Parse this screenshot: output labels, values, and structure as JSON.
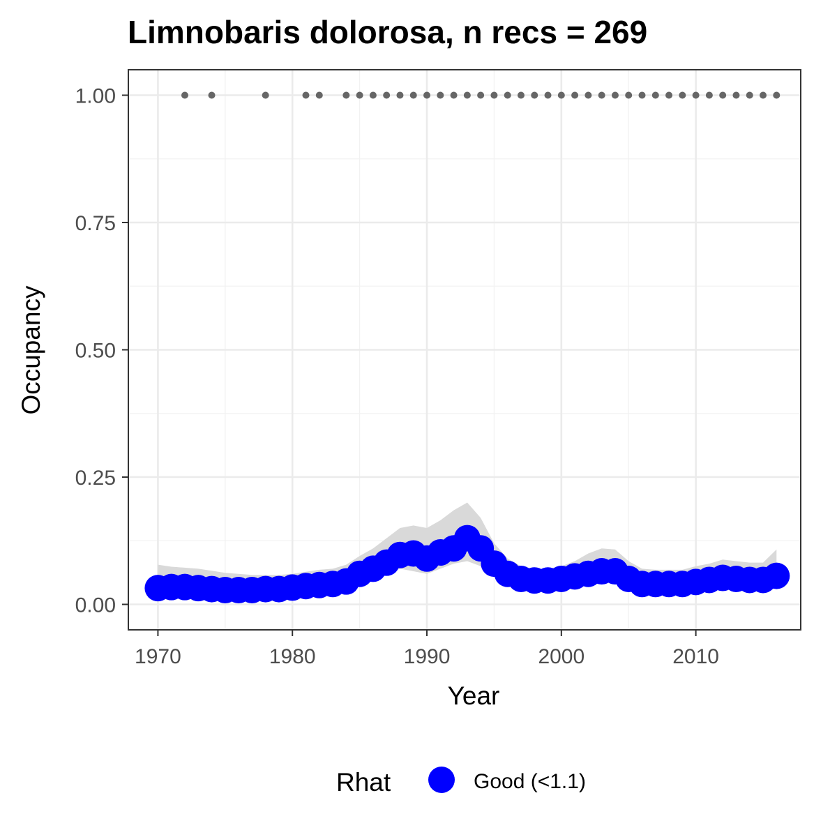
{
  "chart_data": {
    "type": "line",
    "title": "Limnobaris dolorosa, n recs = 269",
    "xlabel": "Year",
    "ylabel": "Occupancy",
    "xlim": [
      1967.8,
      2017.8
    ],
    "ylim": [
      -0.05,
      1.05
    ],
    "x_ticks": [
      1970,
      1980,
      1990,
      2000,
      2010
    ],
    "x_tick_labels": [
      "1970",
      "1980",
      "1990",
      "2000",
      "2010"
    ],
    "y_ticks": [
      0,
      0.25,
      0.5,
      0.75,
      1
    ],
    "y_tick_labels": [
      "0.00",
      "0.25",
      "0.50",
      "0.75",
      "1.00"
    ],
    "grid": true,
    "legend": {
      "title": "Rhat",
      "position": "bottom",
      "entries": [
        {
          "label": "Good (<1.1)",
          "color": "#0000ff"
        }
      ]
    },
    "series": [
      {
        "name": "Good (<1.1)",
        "color": "#0000ff",
        "x": [
          1970,
          1971,
          1972,
          1973,
          1974,
          1975,
          1976,
          1977,
          1978,
          1979,
          1980,
          1981,
          1982,
          1983,
          1984,
          1985,
          1986,
          1987,
          1988,
          1989,
          1990,
          1991,
          1992,
          1993,
          1994,
          1995,
          1996,
          1997,
          1998,
          1999,
          2000,
          2001,
          2002,
          2003,
          2004,
          2005,
          2006,
          2007,
          2008,
          2009,
          2010,
          2011,
          2012,
          2013,
          2014,
          2015,
          2016
        ],
        "y": [
          0.032,
          0.034,
          0.034,
          0.032,
          0.03,
          0.028,
          0.028,
          0.028,
          0.03,
          0.03,
          0.033,
          0.036,
          0.038,
          0.04,
          0.045,
          0.06,
          0.07,
          0.082,
          0.097,
          0.1,
          0.09,
          0.102,
          0.11,
          0.13,
          0.11,
          0.08,
          0.06,
          0.05,
          0.047,
          0.047,
          0.05,
          0.055,
          0.06,
          0.065,
          0.065,
          0.05,
          0.04,
          0.04,
          0.04,
          0.04,
          0.044,
          0.048,
          0.052,
          0.05,
          0.048,
          0.048,
          0.056
        ]
      }
    ],
    "ribbon": {
      "color": "#d9d9d9",
      "x": [
        1970,
        1971,
        1972,
        1973,
        1974,
        1975,
        1976,
        1977,
        1978,
        1979,
        1980,
        1981,
        1982,
        1983,
        1984,
        1985,
        1986,
        1987,
        1988,
        1989,
        1990,
        1991,
        1992,
        1993,
        1994,
        1995,
        1996,
        1997,
        1998,
        1999,
        2000,
        2001,
        2002,
        2003,
        2004,
        2005,
        2006,
        2007,
        2008,
        2009,
        2010,
        2011,
        2012,
        2013,
        2014,
        2015,
        2016
      ],
      "lower": [
        0.018,
        0.02,
        0.02,
        0.019,
        0.018,
        0.017,
        0.017,
        0.017,
        0.018,
        0.018,
        0.02,
        0.022,
        0.024,
        0.026,
        0.03,
        0.04,
        0.05,
        0.06,
        0.07,
        0.065,
        0.06,
        0.07,
        0.08,
        0.085,
        0.075,
        0.055,
        0.042,
        0.035,
        0.033,
        0.033,
        0.035,
        0.038,
        0.042,
        0.045,
        0.045,
        0.035,
        0.028,
        0.028,
        0.028,
        0.028,
        0.031,
        0.034,
        0.036,
        0.035,
        0.034,
        0.034,
        0.038
      ],
      "upper": [
        0.078,
        0.074,
        0.072,
        0.07,
        0.066,
        0.062,
        0.06,
        0.058,
        0.058,
        0.058,
        0.06,
        0.064,
        0.068,
        0.07,
        0.078,
        0.095,
        0.11,
        0.13,
        0.15,
        0.155,
        0.15,
        0.165,
        0.185,
        0.2,
        0.17,
        0.12,
        0.09,
        0.075,
        0.07,
        0.07,
        0.075,
        0.085,
        0.1,
        0.11,
        0.108,
        0.085,
        0.07,
        0.068,
        0.068,
        0.068,
        0.075,
        0.08,
        0.088,
        0.085,
        0.082,
        0.082,
        0.108
      ]
    },
    "records": {
      "color": "#666666",
      "y": 1,
      "x": [
        1972,
        1974,
        1978,
        1981,
        1982,
        1984,
        1985,
        1986,
        1987,
        1988,
        1989,
        1990,
        1991,
        1992,
        1993,
        1994,
        1995,
        1996,
        1997,
        1998,
        1999,
        2000,
        2001,
        2002,
        2003,
        2004,
        2005,
        2006,
        2007,
        2008,
        2009,
        2010,
        2011,
        2012,
        2013,
        2014,
        2015,
        2016
      ]
    }
  }
}
